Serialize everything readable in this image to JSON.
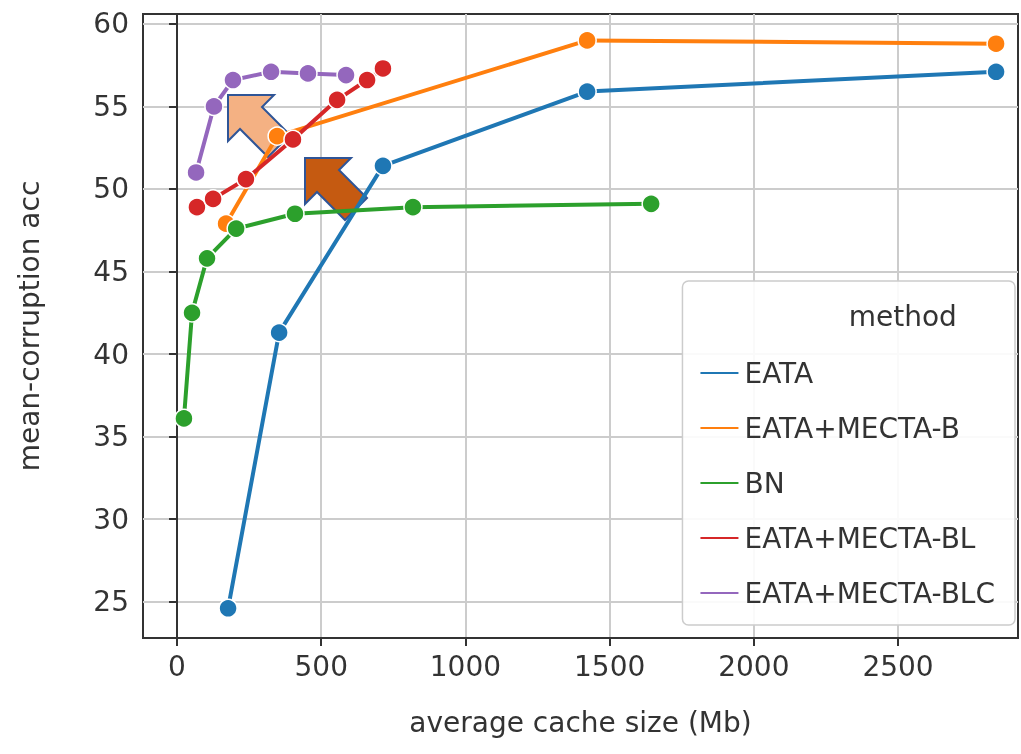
{
  "chart_data": {
    "type": "line",
    "xlabel": "average cache size (Mb)",
    "ylabel": "mean-corruption acc",
    "legend_title": "method",
    "xlim": [
      -118,
      2916
    ],
    "ylim": [
      22.8,
      60.6
    ],
    "xticks": [
      0,
      500,
      1000,
      1500,
      2000,
      2500
    ],
    "yticks": [
      25,
      30,
      35,
      40,
      45,
      50,
      55,
      60
    ],
    "grid": true,
    "legend": "bottom right",
    "marker": "circle",
    "line_style": "solid",
    "series": [
      {
        "name": "EATA",
        "color": "#1f77b4",
        "x": [
          177,
          354,
          714,
          1422,
          2840
        ],
        "values": [
          24.6,
          41.3,
          51.4,
          55.9,
          57.1
        ]
      },
      {
        "name": "EATA+MECTA-B",
        "color": "#ff7f0e",
        "x": [
          170,
          347,
          700,
          1422,
          2840
        ],
        "values": [
          47.9,
          53.2,
          null,
          59.0,
          58.8
        ]
      },
      {
        "name": "BN",
        "color": "#2ca02c",
        "x": [
          24,
          52,
          104,
          205,
          409,
          818,
          1644
        ],
        "values": [
          36.1,
          42.5,
          45.8,
          47.6,
          48.5,
          48.9,
          49.1
        ]
      },
      {
        "name": "EATA+MECTA-BL",
        "color": "#d62728",
        "x": [
          69,
          125,
          239,
          402,
          555,
          659,
          714
        ],
        "values": [
          48.9,
          49.4,
          50.6,
          53.0,
          55.4,
          56.6,
          57.3
        ]
      },
      {
        "name": "EATA+MECTA-BLC",
        "color": "#9467bd",
        "x": [
          66,
          128,
          194,
          326,
          454,
          586
        ],
        "values": [
          51.0,
          55.0,
          56.6,
          57.1,
          57.0,
          56.9
        ]
      }
    ]
  }
}
